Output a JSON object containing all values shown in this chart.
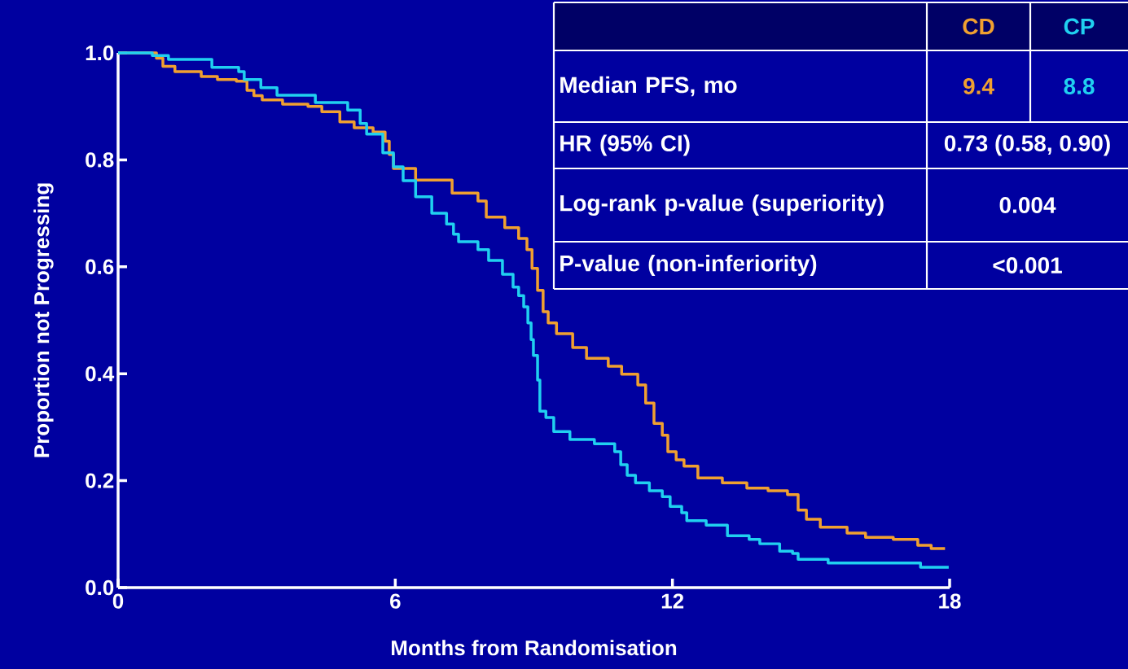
{
  "chart_data": {
    "type": "step",
    "xlabel": "Months from Randomisation",
    "ylabel": "Proportion not Progressing",
    "xlim": [
      0,
      18
    ],
    "ylim": [
      0,
      1
    ],
    "xticks": [
      0,
      6,
      12,
      18
    ],
    "yticks": [
      {
        "value": 0,
        "label": "0.0"
      },
      {
        "value": 0.2,
        "label": "0.2"
      },
      {
        "value": 0.4,
        "label": "0.4"
      },
      {
        "value": 0.6,
        "label": "0.6"
      },
      {
        "value": 0.8,
        "label": "0.8"
      },
      {
        "value": 1,
        "label": "1.0"
      }
    ],
    "legend": "top right",
    "annotations": [
      "Median PFS, mo",
      "9.4",
      "8.8",
      "HR (95% CI)",
      "0.73 (0.58, 0.90)",
      "Log-rank p-value (superiority)",
      "0.004",
      "P-value (non-inferiority)",
      "<0.001"
    ],
    "series": [
      {
        "name": "CD",
        "color": "#f0a030",
        "x": [
          0,
          0.83,
          0.97,
          1.23,
          1.8,
          2.15,
          2.56,
          2.79,
          2.94,
          3.12,
          3.56,
          4.11,
          4.41,
          4.8,
          5.11,
          5.52,
          5.78,
          5.87,
          5.96,
          6.44,
          7.23,
          7.79,
          7.97,
          8.37,
          8.67,
          8.85,
          8.96,
          9.08,
          9.2,
          9.31,
          9.49,
          9.84,
          10.14,
          10.61,
          10.9,
          11.25,
          11.42,
          11.6,
          11.78,
          11.9,
          12.08,
          12.25,
          12.55,
          13.08,
          13.61,
          14.07,
          14.49,
          14.72,
          14.9,
          15.2,
          15.78,
          16.18,
          16.78,
          17.31,
          17.6,
          17.9
        ],
        "values": [
          1.0,
          0.99,
          0.975,
          0.965,
          0.956,
          0.95,
          0.947,
          0.93,
          0.92,
          0.912,
          0.904,
          0.9,
          0.89,
          0.871,
          0.86,
          0.852,
          0.835,
          0.81,
          0.784,
          0.762,
          0.738,
          0.723,
          0.693,
          0.673,
          0.653,
          0.632,
          0.597,
          0.556,
          0.516,
          0.495,
          0.475,
          0.449,
          0.429,
          0.414,
          0.399,
          0.379,
          0.345,
          0.307,
          0.285,
          0.254,
          0.239,
          0.227,
          0.205,
          0.196,
          0.186,
          0.181,
          0.174,
          0.145,
          0.128,
          0.113,
          0.102,
          0.094,
          0.09,
          0.079,
          0.073,
          0.073
        ]
      },
      {
        "name": "CP",
        "color": "#20d0f0",
        "x": [
          0,
          0.74,
          1.09,
          2.03,
          2.61,
          2.73,
          3.09,
          3.44,
          4.27,
          4.97,
          5.24,
          5.38,
          5.73,
          5.96,
          6.17,
          6.44,
          6.79,
          7.11,
          7.26,
          7.37,
          7.79,
          8.02,
          8.32,
          8.55,
          8.67,
          8.78,
          8.87,
          8.94,
          8.99,
          9.08,
          9.13,
          9.26,
          9.43,
          9.78,
          10.31,
          10.75,
          10.88,
          11.02,
          11.2,
          11.5,
          11.78,
          11.95,
          12.2,
          12.31,
          12.73,
          13.19,
          13.66,
          13.89,
          14.32,
          14.6,
          14.72,
          15.37,
          17.37,
          17.98
        ],
        "values": [
          1.0,
          0.995,
          0.988,
          0.973,
          0.965,
          0.95,
          0.935,
          0.921,
          0.907,
          0.893,
          0.868,
          0.848,
          0.813,
          0.787,
          0.761,
          0.731,
          0.7,
          0.68,
          0.661,
          0.647,
          0.632,
          0.612,
          0.586,
          0.562,
          0.546,
          0.525,
          0.495,
          0.464,
          0.434,
          0.388,
          0.33,
          0.318,
          0.292,
          0.277,
          0.269,
          0.254,
          0.23,
          0.21,
          0.196,
          0.181,
          0.17,
          0.152,
          0.14,
          0.125,
          0.117,
          0.097,
          0.09,
          0.082,
          0.068,
          0.064,
          0.053,
          0.046,
          0.038,
          0.038
        ]
      }
    ]
  }
}
